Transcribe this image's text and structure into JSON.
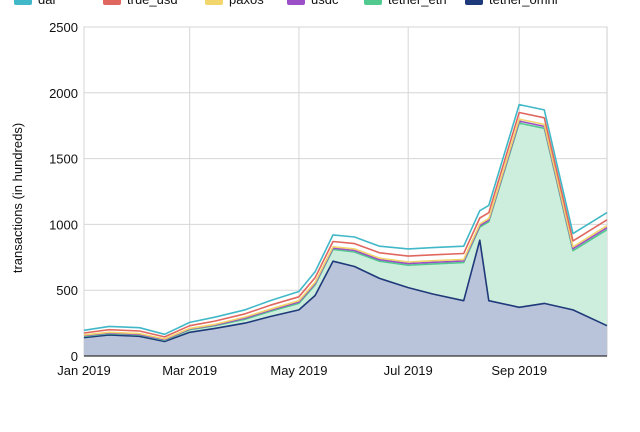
{
  "chart_data": {
    "type": "area",
    "ylabel": "transactions (in hundreds)",
    "xlabel": "",
    "ylim": [
      0,
      2500
    ],
    "yticks": [
      0,
      500,
      1000,
      1500,
      2000,
      2500
    ],
    "x_start": "2019-01-01",
    "x_end": "2019-10-20",
    "x_ticks": [
      {
        "date": "2019-01-01",
        "label": "Jan 2019"
      },
      {
        "date": "2019-03-01",
        "label": "Mar 2019"
      },
      {
        "date": "2019-05-01",
        "label": "May 2019"
      },
      {
        "date": "2019-07-01",
        "label": "Jul 2019"
      },
      {
        "date": "2019-09-01",
        "label": "Sep 2019"
      }
    ],
    "grid": true,
    "legend_position": "top",
    "stacked": true,
    "series": [
      {
        "name": "tether_omni",
        "color": "#1f3a7a",
        "fill": "#b9c3d9",
        "points": [
          [
            "2019-01-01",
            140
          ],
          [
            "2019-01-15",
            160
          ],
          [
            "2019-02-01",
            150
          ],
          [
            "2019-02-15",
            110
          ],
          [
            "2019-03-01",
            180
          ],
          [
            "2019-03-15",
            210
          ],
          [
            "2019-04-01",
            250
          ],
          [
            "2019-04-15",
            300
          ],
          [
            "2019-05-01",
            350
          ],
          [
            "2019-05-10",
            460
          ],
          [
            "2019-05-20",
            720
          ],
          [
            "2019-06-01",
            680
          ],
          [
            "2019-06-15",
            590
          ],
          [
            "2019-07-01",
            520
          ],
          [
            "2019-07-15",
            470
          ],
          [
            "2019-08-01",
            420
          ],
          [
            "2019-08-10",
            880
          ],
          [
            "2019-08-15",
            420
          ],
          [
            "2019-09-01",
            370
          ],
          [
            "2019-09-15",
            400
          ],
          [
            "2019-10-01",
            350
          ],
          [
            "2019-10-20",
            230
          ]
        ]
      },
      {
        "name": "tether_eth",
        "color": "#52c98e",
        "fill": "#cdeedd",
        "points": [
          [
            "2019-01-01",
            10
          ],
          [
            "2019-01-15",
            10
          ],
          [
            "2019-02-01",
            10
          ],
          [
            "2019-02-15",
            10
          ],
          [
            "2019-03-01",
            20
          ],
          [
            "2019-03-15",
            20
          ],
          [
            "2019-04-01",
            30
          ],
          [
            "2019-04-15",
            40
          ],
          [
            "2019-05-01",
            50
          ],
          [
            "2019-05-10",
            80
          ],
          [
            "2019-05-20",
            90
          ],
          [
            "2019-06-01",
            110
          ],
          [
            "2019-06-15",
            130
          ],
          [
            "2019-07-01",
            170
          ],
          [
            "2019-07-15",
            230
          ],
          [
            "2019-08-01",
            290
          ],
          [
            "2019-08-10",
            100
          ],
          [
            "2019-08-15",
            600
          ],
          [
            "2019-09-01",
            1400
          ],
          [
            "2019-09-15",
            1330
          ],
          [
            "2019-10-01",
            450
          ],
          [
            "2019-10-20",
            730
          ]
        ]
      },
      {
        "name": "usdc",
        "color": "#9b4fc6",
        "points": [
          [
            "2019-01-01",
            5
          ],
          [
            "2019-01-15",
            5
          ],
          [
            "2019-02-01",
            5
          ],
          [
            "2019-02-15",
            5
          ],
          [
            "2019-03-01",
            5
          ],
          [
            "2019-03-15",
            5
          ],
          [
            "2019-04-01",
            8
          ],
          [
            "2019-04-15",
            8
          ],
          [
            "2019-05-01",
            10
          ],
          [
            "2019-05-10",
            10
          ],
          [
            "2019-05-20",
            10
          ],
          [
            "2019-06-01",
            12
          ],
          [
            "2019-06-15",
            12
          ],
          [
            "2019-07-01",
            12
          ],
          [
            "2019-07-15",
            12
          ],
          [
            "2019-08-01",
            12
          ],
          [
            "2019-08-10",
            12
          ],
          [
            "2019-08-15",
            12
          ],
          [
            "2019-09-01",
            15
          ],
          [
            "2019-09-15",
            15
          ],
          [
            "2019-10-01",
            15
          ],
          [
            "2019-10-20",
            15
          ]
        ]
      },
      {
        "name": "paxos",
        "color": "#f2d56b",
        "points": [
          [
            "2019-01-01",
            5
          ],
          [
            "2019-01-15",
            5
          ],
          [
            "2019-02-01",
            5
          ],
          [
            "2019-02-15",
            5
          ],
          [
            "2019-03-01",
            5
          ],
          [
            "2019-03-15",
            5
          ],
          [
            "2019-04-01",
            8
          ],
          [
            "2019-04-15",
            8
          ],
          [
            "2019-05-01",
            10
          ],
          [
            "2019-05-10",
            10
          ],
          [
            "2019-05-20",
            10
          ],
          [
            "2019-06-01",
            12
          ],
          [
            "2019-06-15",
            12
          ],
          [
            "2019-07-01",
            12
          ],
          [
            "2019-07-15",
            12
          ],
          [
            "2019-08-01",
            12
          ],
          [
            "2019-08-10",
            12
          ],
          [
            "2019-08-15",
            12
          ],
          [
            "2019-09-01",
            15
          ],
          [
            "2019-09-15",
            15
          ],
          [
            "2019-10-01",
            15
          ],
          [
            "2019-10-20",
            15
          ]
        ]
      },
      {
        "name": "true_usd",
        "color": "#e0675f",
        "points": [
          [
            "2019-01-01",
            15
          ],
          [
            "2019-01-15",
            20
          ],
          [
            "2019-02-01",
            20
          ],
          [
            "2019-02-15",
            15
          ],
          [
            "2019-03-01",
            20
          ],
          [
            "2019-03-15",
            25
          ],
          [
            "2019-04-01",
            25
          ],
          [
            "2019-04-15",
            30
          ],
          [
            "2019-05-01",
            30
          ],
          [
            "2019-05-10",
            35
          ],
          [
            "2019-05-20",
            40
          ],
          [
            "2019-06-01",
            40
          ],
          [
            "2019-06-15",
            40
          ],
          [
            "2019-07-01",
            45
          ],
          [
            "2019-07-15",
            45
          ],
          [
            "2019-08-01",
            45
          ],
          [
            "2019-08-10",
            45
          ],
          [
            "2019-08-15",
            45
          ],
          [
            "2019-09-01",
            50
          ],
          [
            "2019-09-15",
            50
          ],
          [
            "2019-10-01",
            45
          ],
          [
            "2019-10-20",
            45
          ]
        ]
      },
      {
        "name": "dai",
        "color": "#41b8c8",
        "points": [
          [
            "2019-01-01",
            20
          ],
          [
            "2019-01-15",
            25
          ],
          [
            "2019-02-01",
            25
          ],
          [
            "2019-02-15",
            20
          ],
          [
            "2019-03-01",
            25
          ],
          [
            "2019-03-15",
            30
          ],
          [
            "2019-04-01",
            30
          ],
          [
            "2019-04-15",
            35
          ],
          [
            "2019-05-01",
            40
          ],
          [
            "2019-05-10",
            45
          ],
          [
            "2019-05-20",
            50
          ],
          [
            "2019-06-01",
            50
          ],
          [
            "2019-06-15",
            50
          ],
          [
            "2019-07-01",
            55
          ],
          [
            "2019-07-15",
            55
          ],
          [
            "2019-08-01",
            55
          ],
          [
            "2019-08-10",
            55
          ],
          [
            "2019-08-15",
            55
          ],
          [
            "2019-09-01",
            60
          ],
          [
            "2019-09-15",
            60
          ],
          [
            "2019-10-01",
            55
          ],
          [
            "2019-10-20",
            55
          ]
        ]
      }
    ],
    "legend_order": [
      "dai",
      "true_usd",
      "paxos",
      "usdc",
      "tether_eth",
      "tether_omni"
    ]
  }
}
